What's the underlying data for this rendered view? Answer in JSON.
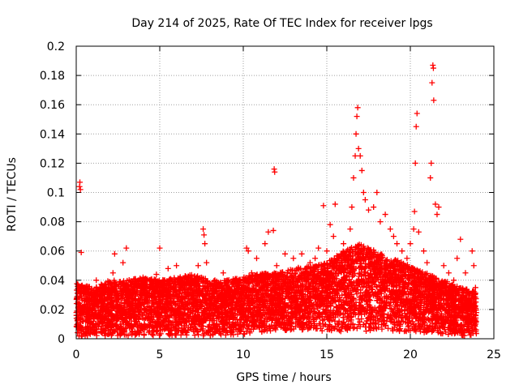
{
  "chart_data": {
    "type": "scatter",
    "title": "Day 214 of 2025, Rate Of TEC Index for receiver lpgs",
    "xlabel": "GPS time / hours",
    "ylabel": "ROTI / TECUs",
    "xlim": [
      0,
      25
    ],
    "ylim": [
      0,
      0.2
    ],
    "x_ticks": [
      0,
      5,
      10,
      15,
      20,
      25
    ],
    "x_tick_labels": [
      "0",
      "5",
      "10",
      "15",
      "20",
      "25"
    ],
    "y_ticks": [
      0,
      0.02,
      0.04,
      0.06,
      0.08,
      0.1,
      0.12,
      0.14,
      0.16,
      0.18,
      0.2
    ],
    "y_tick_labels": [
      "0",
      "0.02",
      "0.04",
      "0.06",
      "0.08",
      "0.1",
      "0.12",
      "0.14",
      "0.16",
      "0.18",
      "0.2"
    ],
    "grid": true,
    "marker": "+",
    "color": "#ff0000",
    "series": [
      {
        "name": "ROTI",
        "points": [
          [
            0.05,
            0.008
          ],
          [
            0.1,
            0.025
          ],
          [
            0.15,
            0.035
          ],
          [
            0.2,
            0.104
          ],
          [
            0.22,
            0.107
          ],
          [
            0.25,
            0.102
          ],
          [
            0.3,
            0.059
          ],
          [
            0.4,
            0.02
          ],
          [
            0.5,
            0.032
          ],
          [
            0.6,
            0.015
          ],
          [
            0.8,
            0.028
          ],
          [
            1.0,
            0.01
          ],
          [
            1.2,
            0.04
          ],
          [
            1.5,
            0.025
          ],
          [
            1.8,
            0.035
          ],
          [
            2.0,
            0.018
          ],
          [
            2.2,
            0.045
          ],
          [
            2.3,
            0.058
          ],
          [
            2.5,
            0.03
          ],
          [
            2.8,
            0.052
          ],
          [
            3.0,
            0.062
          ],
          [
            3.2,
            0.022
          ],
          [
            3.5,
            0.038
          ],
          [
            3.8,
            0.015
          ],
          [
            4.0,
            0.042
          ],
          [
            4.2,
            0.028
          ],
          [
            4.5,
            0.035
          ],
          [
            4.8,
            0.044
          ],
          [
            5.0,
            0.062
          ],
          [
            5.2,
            0.03
          ],
          [
            5.5,
            0.048
          ],
          [
            5.8,
            0.02
          ],
          [
            6.0,
            0.05
          ],
          [
            6.2,
            0.038
          ],
          [
            6.5,
            0.025
          ],
          [
            6.8,
            0.042
          ],
          [
            7.0,
            0.03
          ],
          [
            7.3,
            0.05
          ],
          [
            7.6,
            0.075
          ],
          [
            7.65,
            0.071
          ],
          [
            7.7,
            0.065
          ],
          [
            7.8,
            0.052
          ],
          [
            8.0,
            0.028
          ],
          [
            8.3,
            0.04
          ],
          [
            8.5,
            0.018
          ],
          [
            8.8,
            0.045
          ],
          [
            9.0,
            0.032
          ],
          [
            9.3,
            0.025
          ],
          [
            9.5,
            0.04
          ],
          [
            9.8,
            0.022
          ],
          [
            10.0,
            0.035
          ],
          [
            10.2,
            0.062
          ],
          [
            10.3,
            0.06
          ],
          [
            10.5,
            0.045
          ],
          [
            10.8,
            0.055
          ],
          [
            11.0,
            0.04
          ],
          [
            11.3,
            0.065
          ],
          [
            11.5,
            0.073
          ],
          [
            11.8,
            0.074
          ],
          [
            11.85,
            0.116
          ],
          [
            11.88,
            0.114
          ],
          [
            12.0,
            0.05
          ],
          [
            12.3,
            0.045
          ],
          [
            12.5,
            0.058
          ],
          [
            12.8,
            0.035
          ],
          [
            13.0,
            0.055
          ],
          [
            13.3,
            0.048
          ],
          [
            13.5,
            0.058
          ],
          [
            13.8,
            0.04
          ],
          [
            14.0,
            0.052
          ],
          [
            14.3,
            0.055
          ],
          [
            14.5,
            0.062
          ],
          [
            14.8,
            0.091
          ],
          [
            15.0,
            0.06
          ],
          [
            15.2,
            0.078
          ],
          [
            15.4,
            0.07
          ],
          [
            15.5,
            0.092
          ],
          [
            15.7,
            0.055
          ],
          [
            16.0,
            0.065
          ],
          [
            16.2,
            0.06
          ],
          [
            16.4,
            0.075
          ],
          [
            16.5,
            0.09
          ],
          [
            16.6,
            0.11
          ],
          [
            16.7,
            0.125
          ],
          [
            16.75,
            0.14
          ],
          [
            16.8,
            0.152
          ],
          [
            16.85,
            0.158
          ],
          [
            16.9,
            0.13
          ],
          [
            17.0,
            0.125
          ],
          [
            17.1,
            0.115
          ],
          [
            17.2,
            0.1
          ],
          [
            17.3,
            0.095
          ],
          [
            17.5,
            0.088
          ],
          [
            17.8,
            0.09
          ],
          [
            18.0,
            0.1
          ],
          [
            18.2,
            0.08
          ],
          [
            18.5,
            0.085
          ],
          [
            18.8,
            0.075
          ],
          [
            19.0,
            0.07
          ],
          [
            19.2,
            0.065
          ],
          [
            19.5,
            0.06
          ],
          [
            19.8,
            0.055
          ],
          [
            20.0,
            0.065
          ],
          [
            20.2,
            0.075
          ],
          [
            20.25,
            0.087
          ],
          [
            20.3,
            0.12
          ],
          [
            20.35,
            0.145
          ],
          [
            20.4,
            0.154
          ],
          [
            20.5,
            0.073
          ],
          [
            20.8,
            0.06
          ],
          [
            21.0,
            0.052
          ],
          [
            21.2,
            0.11
          ],
          [
            21.25,
            0.12
          ],
          [
            21.3,
            0.175
          ],
          [
            21.35,
            0.187
          ],
          [
            21.38,
            0.185
          ],
          [
            21.4,
            0.163
          ],
          [
            21.5,
            0.092
          ],
          [
            21.6,
            0.085
          ],
          [
            21.7,
            0.09
          ],
          [
            22.0,
            0.05
          ],
          [
            22.3,
            0.045
          ],
          [
            22.6,
            0.04
          ],
          [
            22.8,
            0.055
          ],
          [
            23.0,
            0.068
          ],
          [
            23.3,
            0.045
          ],
          [
            23.5,
            0.03
          ],
          [
            23.7,
            0.06
          ],
          [
            23.8,
            0.05
          ],
          [
            23.9,
            0.035
          ]
        ],
        "dense_band": [
          [
            0,
            0.001,
            0.038
          ],
          [
            1,
            0.002,
            0.035
          ],
          [
            2,
            0.002,
            0.04
          ],
          [
            3,
            0.002,
            0.04
          ],
          [
            4,
            0.002,
            0.042
          ],
          [
            5,
            0.002,
            0.04
          ],
          [
            6,
            0.002,
            0.042
          ],
          [
            7,
            0.002,
            0.044
          ],
          [
            8,
            0.002,
            0.04
          ],
          [
            9,
            0.002,
            0.04
          ],
          [
            10,
            0.003,
            0.042
          ],
          [
            11,
            0.004,
            0.045
          ],
          [
            12,
            0.005,
            0.045
          ],
          [
            13,
            0.005,
            0.048
          ],
          [
            14,
            0.005,
            0.05
          ],
          [
            15,
            0.005,
            0.052
          ],
          [
            16,
            0.005,
            0.06
          ],
          [
            17,
            0.005,
            0.065
          ],
          [
            18,
            0.005,
            0.06
          ],
          [
            19,
            0.005,
            0.055
          ],
          [
            20,
            0.005,
            0.05
          ],
          [
            21,
            0.004,
            0.045
          ],
          [
            22,
            0.003,
            0.04
          ],
          [
            23,
            0.002,
            0.035
          ],
          [
            24,
            0.002,
            0.032
          ]
        ]
      }
    ]
  }
}
